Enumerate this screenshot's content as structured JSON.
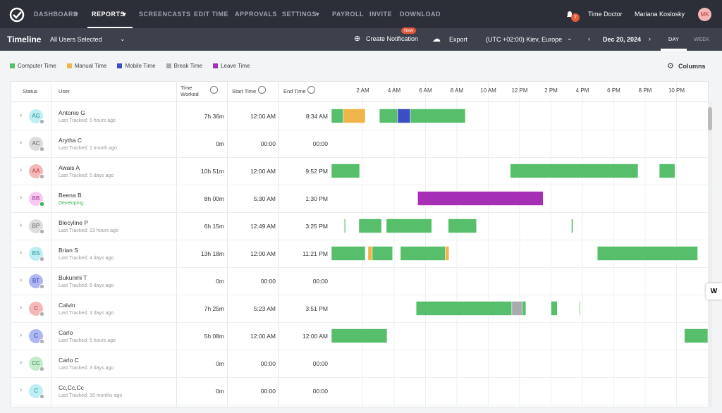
{
  "nav": {
    "items": [
      "DASHBOARD",
      "REPORTS",
      "SCREENCASTS",
      "EDIT TIME",
      "APPROVALS",
      "SETTINGS",
      "PAYROLL",
      "INVITE",
      "DOWNLOAD"
    ],
    "notifications": "2",
    "company": "Time Doctor",
    "user": "Mariana Koslosky",
    "user_initials": "MK"
  },
  "toolbar": {
    "title": "Timeline",
    "user_select": "All Users Selected",
    "create": "Create Notification",
    "badge": "New",
    "export": "Export",
    "timezone": "(UTC +02:00) Kiev, Europe",
    "date": "Dec 20, 2024",
    "day": "DAY",
    "week": "WEEK"
  },
  "legend": [
    {
      "label": "Computer Time",
      "color": "#57bf6b"
    },
    {
      "label": "Manual Time",
      "color": "#f0b54a"
    },
    {
      "label": "Mobile Time",
      "color": "#3a4fc4"
    },
    {
      "label": "Break Time",
      "color": "#a9abae"
    },
    {
      "label": "Leave Time",
      "color": "#a530b6"
    }
  ],
  "columns_button": "Columns",
  "table": {
    "headers": [
      "Status",
      "User",
      "Time Worked",
      "Start Time",
      "End Time"
    ],
    "hours": [
      0,
      24
    ],
    "ticks": [
      {
        "value": 2,
        "label": "2 AM"
      },
      {
        "value": 4,
        "label": "4 AM"
      },
      {
        "value": 6,
        "label": "6 AM"
      },
      {
        "value": 8,
        "label": "8 AM"
      },
      {
        "value": 10,
        "label": "10 AM"
      },
      {
        "value": 12,
        "label": "12 PM"
      },
      {
        "value": 14,
        "label": "2 PM"
      },
      {
        "value": 16,
        "label": "4 PM"
      },
      {
        "value": 18,
        "label": "6 PM"
      },
      {
        "value": 20,
        "label": "8 PM"
      },
      {
        "value": 22,
        "label": "10 PM"
      }
    ],
    "rows": [
      {
        "initials": "AG",
        "name": "Antonio G",
        "note": "Last Tracked: 5 hours ago",
        "worked": "7h 36m",
        "start": "12:00 AM",
        "end": "8:34 AM",
        "avatar_bg": "#bdeef3",
        "avatar_fg": "#1f8c99",
        "status_color": "#b0b0b0",
        "timeline": [
          [
            [
              0,
              0.76
            ],
            [
              3.06,
              4.22
            ],
            [
              5.03,
              8.54
            ]
          ],
          [
            [
              0.76,
              2.16
            ]
          ],
          [
            [
              4.22,
              5.03
            ]
          ],
          [],
          []
        ]
      },
      {
        "initials": "AC",
        "name": "Arytha C",
        "note": "Last Tracked: 1 month ago",
        "worked": "0m",
        "start": "00:00",
        "end": "00:00",
        "avatar_bg": "#dcdcdc",
        "avatar_fg": "#666666",
        "status_color": "#b0b0b0",
        "timeline": [
          [],
          [],
          [],
          [],
          []
        ]
      },
      {
        "initials": "AA",
        "name": "Awais A",
        "note": "Last Tracked: 5 days ago",
        "worked": "10h 51m",
        "start": "12:00 AM",
        "end": "9:52 PM",
        "avatar_bg": "#f5b8b8",
        "avatar_fg": "#b33a3a",
        "status_color": "#b0b0b0",
        "timeline": [
          [
            [
              0,
              1.8
            ],
            [
              11.4,
              19.55
            ],
            [
              20.9,
              21.9
            ]
          ],
          [],
          [],
          [],
          []
        ]
      },
      {
        "initials": "BB",
        "name": "Beena B",
        "note": "Developing",
        "worked": "8h 00m",
        "start": "5:30 AM",
        "end": "1:30 PM",
        "avatar_bg": "#f8c8f0",
        "avatar_fg": "#9a2f96",
        "status_color": "#3cb45a",
        "timeline": [
          [],
          [],
          [],
          [],
          [
            [
              5.5,
              13.5
            ]
          ]
        ]
      },
      {
        "initials": "BP",
        "name": "Blecyline P",
        "note": "Last Tracked: 23 hours ago",
        "worked": "6h 15m",
        "start": "12:49 AM",
        "end": "3:25 PM",
        "avatar_bg": "#dcdcdc",
        "avatar_fg": "#666666",
        "status_color": "#b0b0b0",
        "timeline": [
          [
            [
              0.82,
              0.9
            ],
            [
              1.75,
              3.2
            ],
            [
              3.5,
              6.4
            ],
            [
              7.45,
              9.25
            ],
            [
              15.3,
              15.4
            ]
          ],
          [],
          [],
          [],
          []
        ]
      },
      {
        "initials": "BS",
        "name": "Brian S",
        "note": "Last Tracked: 4 days ago",
        "worked": "13h 18m",
        "start": "12:00 AM",
        "end": "11:21 PM",
        "avatar_bg": "#bdeef3",
        "avatar_fg": "#1f8c99",
        "status_color": "#b0b0b0",
        "timeline": [
          [
            [
              0,
              2.16
            ],
            [
              2.6,
              3.9
            ],
            [
              4.4,
              7.25
            ],
            [
              16.95,
              23.35
            ]
          ],
          [
            [
              2.33,
              2.6
            ],
            [
              7.25,
              7.5
            ]
          ],
          [],
          [],
          []
        ]
      },
      {
        "initials": "BT",
        "name": "Bukunmi T",
        "note": "Last Tracked: 8 days ago",
        "worked": "0m",
        "start": "00:00",
        "end": "00:00",
        "avatar_bg": "#aeb7f2",
        "avatar_fg": "#2c3aa0",
        "status_color": "#b0b0b0",
        "timeline": [
          [],
          [],
          [],
          [],
          []
        ]
      },
      {
        "initials": "C",
        "name": "Calvin",
        "note": "Last Tracked: 3 days ago",
        "worked": "7h 25m",
        "start": "5:23 AM",
        "end": "3:51 PM",
        "avatar_bg": "#f5b8b8",
        "avatar_fg": "#b33a3a",
        "status_color": "#b0b0b0",
        "timeline": [
          [
            [
              5.4,
              11.5
            ],
            [
              12.15,
              12.4
            ],
            [
              14,
              14.4
            ],
            [
              15.8,
              15.86
            ]
          ],
          [],
          [],
          [
            [
              11.5,
              12.15
            ]
          ],
          []
        ]
      },
      {
        "initials": "C",
        "name": "Carlo",
        "note": "Last Tracked: 5 hours ago",
        "worked": "5h 08m",
        "start": "12:00 AM",
        "end": "12:00 AM",
        "avatar_bg": "#aeb7f2",
        "avatar_fg": "#2c3aa0",
        "status_color": "#b0b0b0",
        "timeline": [
          [
            [
              0,
              3.55
            ],
            [
              22.5,
              24
            ]
          ],
          [],
          [],
          [],
          []
        ]
      },
      {
        "initials": "CC",
        "name": "Carlo C",
        "note": "Last Tracked: 3 days ago",
        "worked": "0m",
        "start": "00:00",
        "end": "00:00",
        "avatar_bg": "#c4ebcc",
        "avatar_fg": "#2e8a45",
        "status_color": "#b0b0b0",
        "timeline": [
          [],
          [],
          [],
          [],
          []
        ]
      },
      {
        "initials": "C",
        "name": "Cc,Cc,Cc",
        "note": "Last Tracked: 16 months ago",
        "worked": "0m",
        "start": "00:00",
        "end": "00:00",
        "avatar_bg": "#bdeef3",
        "avatar_fg": "#1f8c99",
        "status_color": "#b0b0b0",
        "timeline": [
          [],
          [],
          [],
          [],
          []
        ]
      }
    ]
  }
}
